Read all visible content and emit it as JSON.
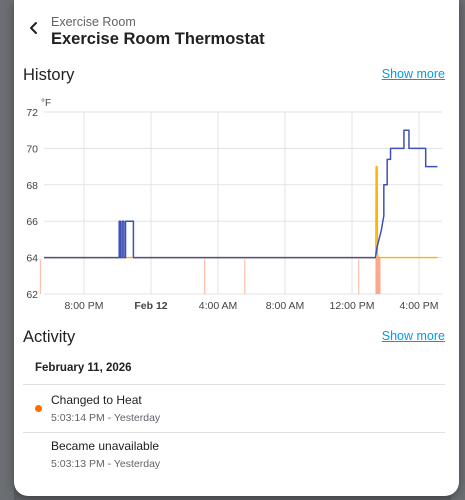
{
  "dialog": {
    "subtitle": "Exercise Room",
    "title": "Exercise Room Thermostat"
  },
  "history": {
    "title": "History",
    "show_more": "Show more"
  },
  "activity": {
    "title": "Activity",
    "show_more": "Show more",
    "date": "February 11, 2026",
    "items": [
      {
        "message": "Changed to Heat",
        "time": "5:03:14 PM - Yesterday",
        "status_dot": true
      },
      {
        "message": "Became unavailable",
        "time": "5:03:13 PM - Yesterday",
        "status_dot": false
      }
    ]
  },
  "colors": {
    "current_temp": "#3f51b5",
    "target_temp": "#ffb300",
    "heating": "#ff8a65",
    "link": "#039be5",
    "status_dot": "#ff6d00"
  },
  "chart_data": {
    "type": "line",
    "ylabel": "°F",
    "ylim": [
      62,
      72
    ],
    "yticks": [
      "62",
      "64",
      "66",
      "68",
      "70",
      "72"
    ],
    "xlim": [
      -4,
      17
    ],
    "x_unit": "hours from midnight Feb 12",
    "xticks": [
      {
        "x": -4,
        "label": "8:00 PM",
        "bold": false
      },
      {
        "x": 0,
        "label": "Feb 12",
        "bold": true
      },
      {
        "x": 4,
        "label": "4:00 AM",
        "bold": false
      },
      {
        "x": 8,
        "label": "8:00 AM",
        "bold": false
      },
      {
        "x": 12,
        "label": "12:00 PM",
        "bold": false
      },
      {
        "x": 16,
        "label": "4:00 PM",
        "bold": false
      }
    ],
    "grid": true,
    "series": [
      {
        "key": "current",
        "points": [
          [
            -7.2,
            64
          ],
          [
            -1.9,
            64
          ],
          [
            -1.9,
            66
          ],
          [
            -1.82,
            66
          ],
          [
            -1.82,
            64
          ],
          [
            -1.72,
            64
          ],
          [
            -1.72,
            66
          ],
          [
            -1.62,
            66
          ],
          [
            -1.62,
            64
          ],
          [
            -1.52,
            64
          ],
          [
            -1.52,
            66
          ],
          [
            -1.05,
            66
          ],
          [
            -1.05,
            64
          ],
          [
            13.4,
            64
          ],
          [
            13.5,
            64.6
          ],
          [
            13.75,
            65.5
          ],
          [
            13.9,
            66.3
          ],
          [
            13.9,
            68
          ],
          [
            14.1,
            68
          ],
          [
            14.1,
            69.4
          ],
          [
            14.3,
            69.4
          ],
          [
            14.3,
            70
          ],
          [
            15.1,
            70
          ],
          [
            15.1,
            71
          ],
          [
            15.4,
            71
          ],
          [
            15.4,
            70
          ],
          [
            16.4,
            70
          ],
          [
            16.4,
            69
          ],
          [
            17.1,
            69
          ]
        ]
      },
      {
        "key": "target",
        "points": [
          [
            -7.2,
            64
          ],
          [
            13.42,
            64
          ],
          [
            13.44,
            69
          ],
          [
            13.5,
            69
          ],
          [
            13.52,
            64.2
          ],
          [
            13.55,
            64
          ],
          [
            17.1,
            64
          ]
        ]
      }
    ],
    "heating_spikes": [
      -6.6,
      3.2,
      5.6,
      12.4
    ],
    "heating_block": [
      13.4,
      13.7
    ]
  }
}
